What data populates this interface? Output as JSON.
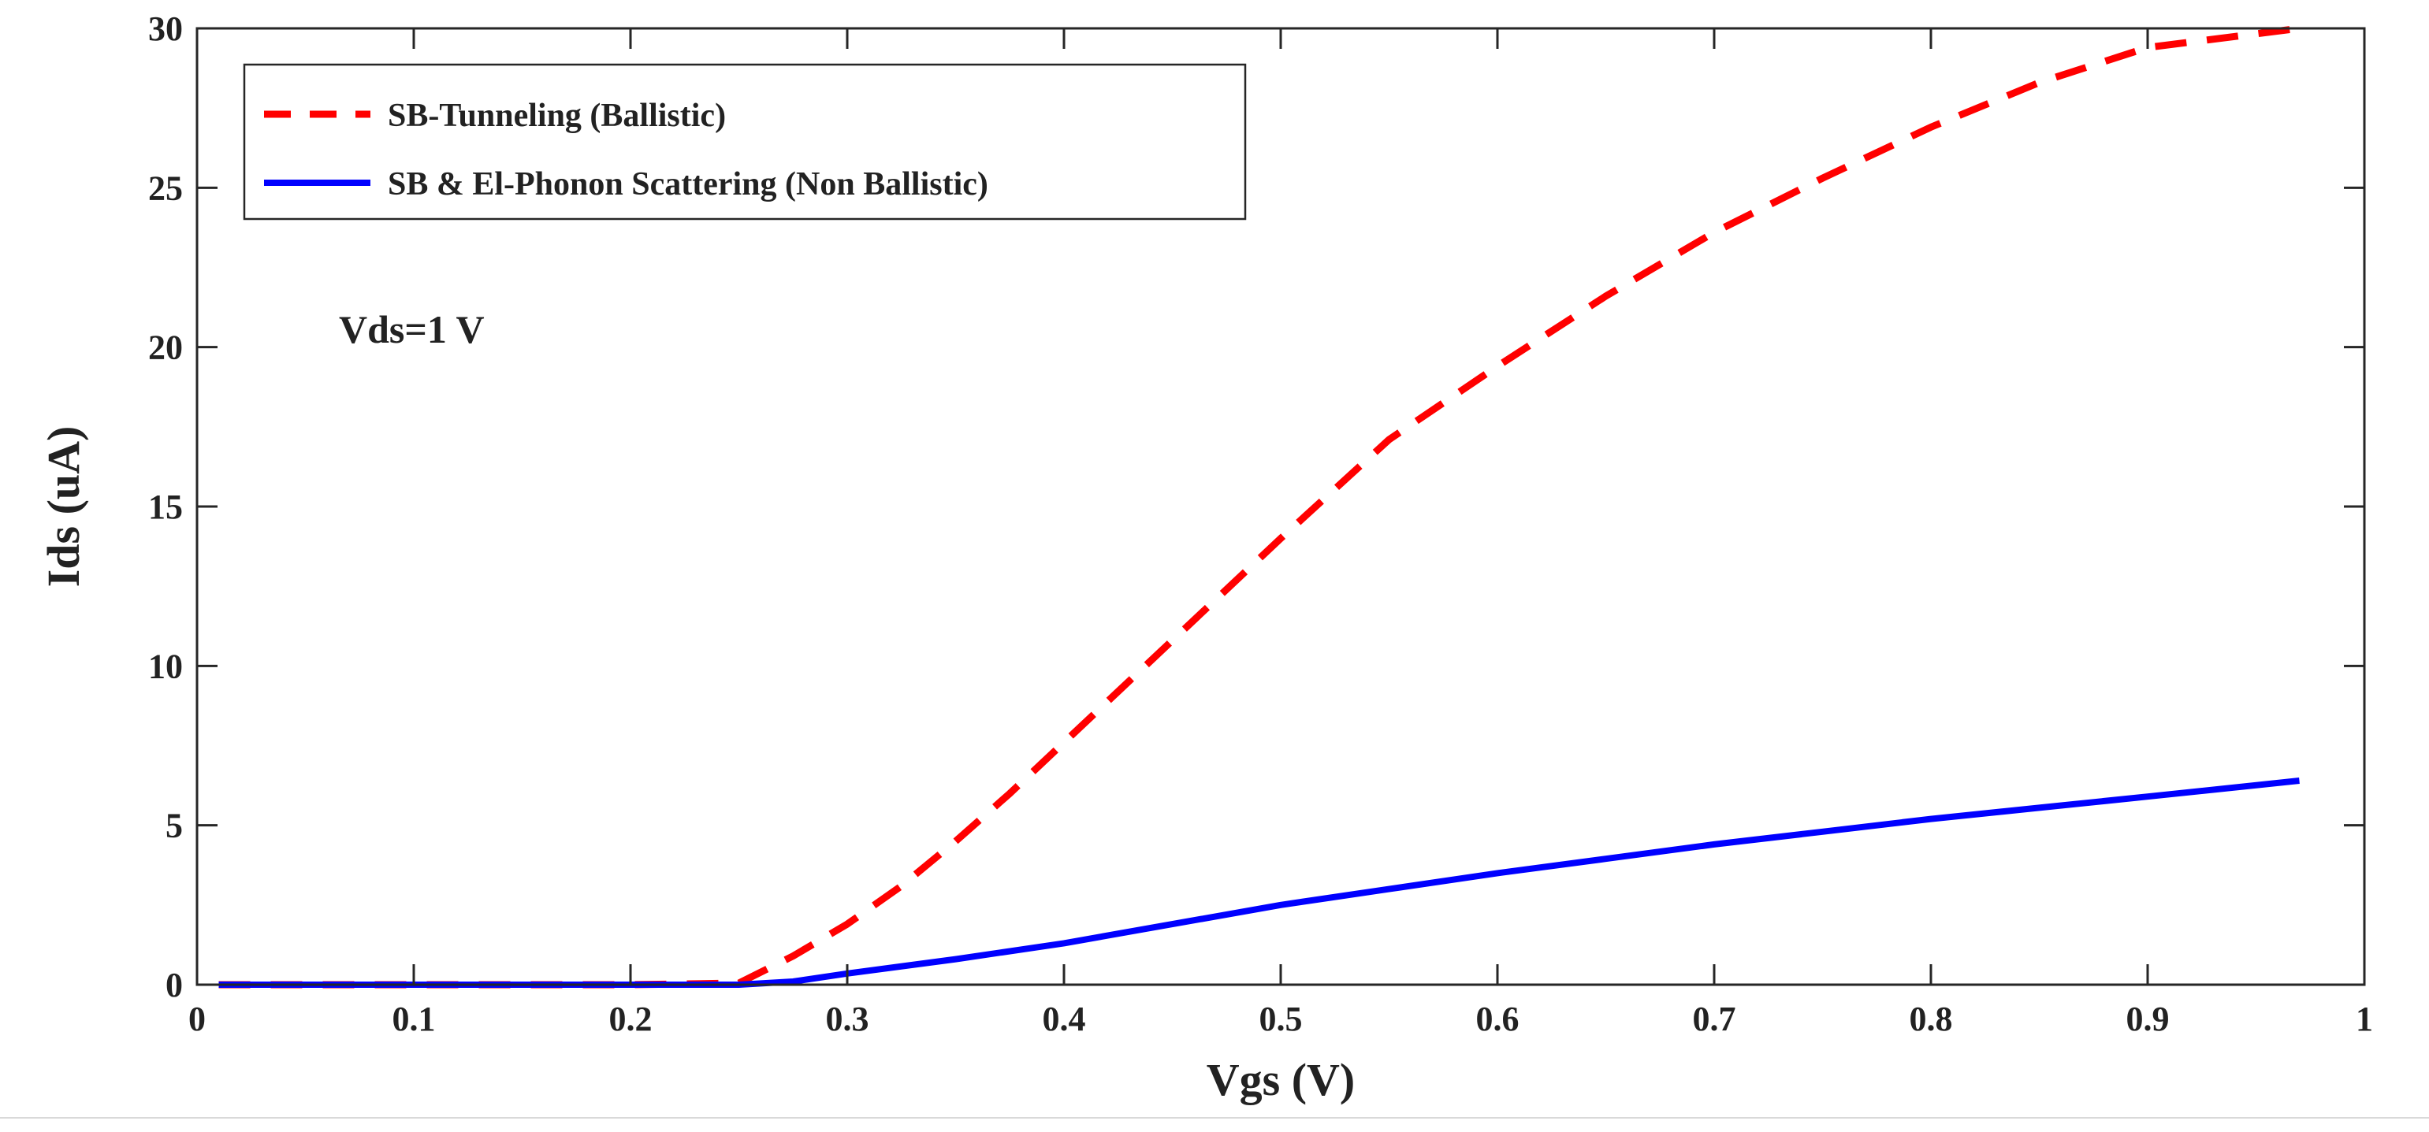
{
  "chart_data": {
    "type": "line",
    "title": "",
    "xlabel": "Vgs (V)",
    "ylabel": "Ids (uA)",
    "xlim": [
      0,
      1
    ],
    "ylim": [
      0,
      30
    ],
    "xticks": [
      0,
      0.1,
      0.2,
      0.3,
      0.4,
      0.5,
      0.6,
      0.7,
      0.8,
      0.9,
      1
    ],
    "xtick_labels": [
      "0",
      "0.1",
      "0.2",
      "0.3",
      "0.4",
      "0.5",
      "0.6",
      "0.7",
      "0.8",
      "0.9",
      "1"
    ],
    "yticks": [
      0,
      5,
      10,
      15,
      20,
      25,
      30
    ],
    "ytick_labels": [
      "0",
      "5",
      "10",
      "15",
      "20",
      "25",
      "30"
    ],
    "grid": false,
    "legend_position": "top-left",
    "annotation": "Vds=1 V",
    "series": [
      {
        "name": "SB-Tunneling (Ballistic)",
        "color": "#ff0000",
        "style": "dashed",
        "x": [
          0.01,
          0.05,
          0.1,
          0.15,
          0.2,
          0.25,
          0.275,
          0.3,
          0.325,
          0.35,
          0.375,
          0.4,
          0.425,
          0.45,
          0.475,
          0.5,
          0.55,
          0.6,
          0.65,
          0.7,
          0.75,
          0.8,
          0.85,
          0.9,
          0.97
        ],
        "y": [
          0,
          0,
          0,
          0,
          0,
          0.05,
          0.9,
          1.9,
          3.1,
          4.5,
          6.0,
          7.6,
          9.2,
          10.8,
          12.4,
          14.0,
          17.1,
          19.4,
          21.6,
          23.6,
          25.3,
          26.9,
          28.3,
          29.4,
          30.0
        ]
      },
      {
        "name": "SB & El-Phonon Scattering (Non Ballistic)",
        "color": "#0000ff",
        "style": "solid",
        "x": [
          0.01,
          0.05,
          0.1,
          0.15,
          0.2,
          0.25,
          0.275,
          0.3,
          0.35,
          0.4,
          0.45,
          0.5,
          0.55,
          0.6,
          0.65,
          0.7,
          0.75,
          0.8,
          0.85,
          0.9,
          0.97
        ],
        "y": [
          0,
          0,
          0,
          0,
          0,
          0,
          0.1,
          0.35,
          0.8,
          1.3,
          1.9,
          2.5,
          3.0,
          3.5,
          3.95,
          4.4,
          4.8,
          5.2,
          5.55,
          5.9,
          6.4
        ]
      }
    ]
  }
}
